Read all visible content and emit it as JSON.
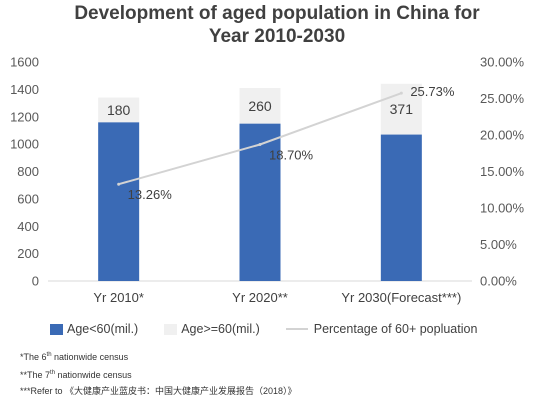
{
  "chart_data": {
    "type": "bar",
    "title_lines": [
      "Development of aged population in China for",
      "Year 2010-2030"
    ],
    "categories": [
      "Yr 2010*",
      "Yr 2020**",
      "Yr 2030(Forecast***)"
    ],
    "series": [
      {
        "name": "Age<60(mil.)",
        "values": [
          1160,
          1150,
          1070
        ],
        "color": "#3a6ab5",
        "stacked": true,
        "axis": "left"
      },
      {
        "name": "Age>=60(mil.)",
        "values": [
          180,
          260,
          371
        ],
        "labels": [
          "180",
          "260",
          "371"
        ],
        "color": "#f0f0f0",
        "stacked": true,
        "axis": "left"
      },
      {
        "name": "Percentage of 60+ popluation",
        "type": "line",
        "values": [
          13.26,
          18.7,
          25.73
        ],
        "labels": [
          "13.26%",
          "18.70%",
          "25.73%"
        ],
        "color": "#d3d3d3",
        "axis": "right"
      }
    ],
    "y_left": {
      "ylim": [
        0,
        1600
      ],
      "ticks": [
        "0",
        "200",
        "400",
        "600",
        "800",
        "1000",
        "1200",
        "1400",
        "1600"
      ]
    },
    "y_right": {
      "ylim": [
        0,
        30
      ],
      "ticks": [
        "0.00%",
        "5.00%",
        "10.00%",
        "15.00%",
        "20.00%",
        "25.00%",
        "30.00%"
      ]
    },
    "grid": false,
    "legend_position": "bottom"
  },
  "legend": {
    "items": [
      "Age<60(mil.)",
      "Age>=60(mil.)",
      "Percentage of 60+ popluation"
    ]
  },
  "footnotes": {
    "note1_pre": "*The 6",
    "note1_sup": "th",
    "note1_post": " nationwide census",
    "note2_pre": "**The 7",
    "note2_sup": "th",
    "note2_post": " nationwide census",
    "note3": "***Refer to 《大健康产业蓝皮书：中国大健康产业发展报告（2018）》"
  }
}
